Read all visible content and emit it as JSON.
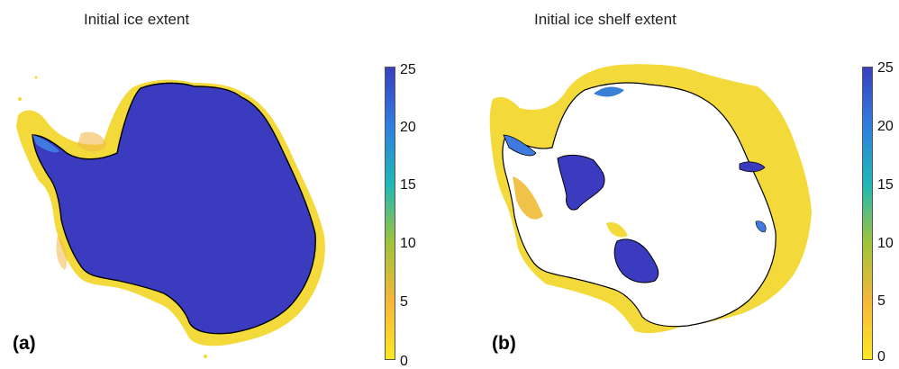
{
  "panels": [
    {
      "title": "Initial ice extent",
      "label": "(a)"
    },
    {
      "title": "Initial ice shelf extent",
      "label": "(b)"
    }
  ],
  "colorbar": {
    "ticks": [
      "25",
      "20",
      "15",
      "10",
      "5",
      "0"
    ],
    "range": [
      0,
      25
    ],
    "colors": [
      "#fde725",
      "#f6b63a",
      "#9fc43a",
      "#1fb8b8",
      "#2f7fdf",
      "#3a3fbf"
    ]
  },
  "colors": {
    "ice_interior": "#3a3bbf",
    "shelf_fringe": "#f3d93a",
    "coast_outline": "#000000"
  }
}
